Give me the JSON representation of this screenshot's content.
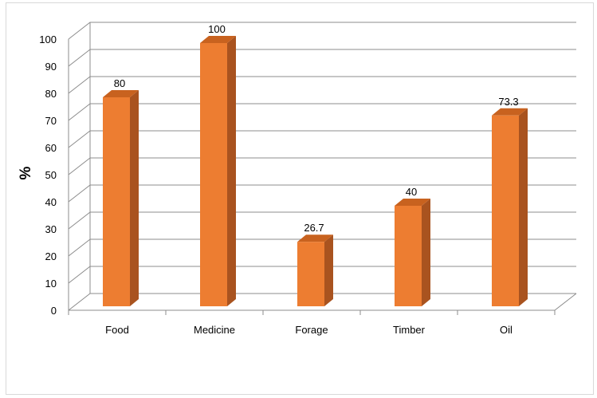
{
  "chart_data": {
    "type": "bar",
    "categories": [
      "Food",
      "Medicine",
      "Forage",
      "Timber",
      "Oil"
    ],
    "values": [
      80,
      100,
      26.7,
      40,
      73.3
    ],
    "data_labels": [
      "80",
      "100",
      "26.7",
      "40",
      "73.3"
    ],
    "title": "",
    "xlabel": "",
    "ylabel": "%",
    "ylim": [
      0,
      100
    ],
    "yticks": [
      "0",
      "10",
      "20",
      "30",
      "40",
      "50",
      "60",
      "70",
      "80",
      "90",
      "100"
    ],
    "grid": true,
    "legend": "none",
    "style": "3d-column",
    "bar_color": "#ED7D31",
    "bar_side_color": "#A9531F",
    "bar_top_color": "#C8621F",
    "grid_color": "#8c8c8c"
  }
}
